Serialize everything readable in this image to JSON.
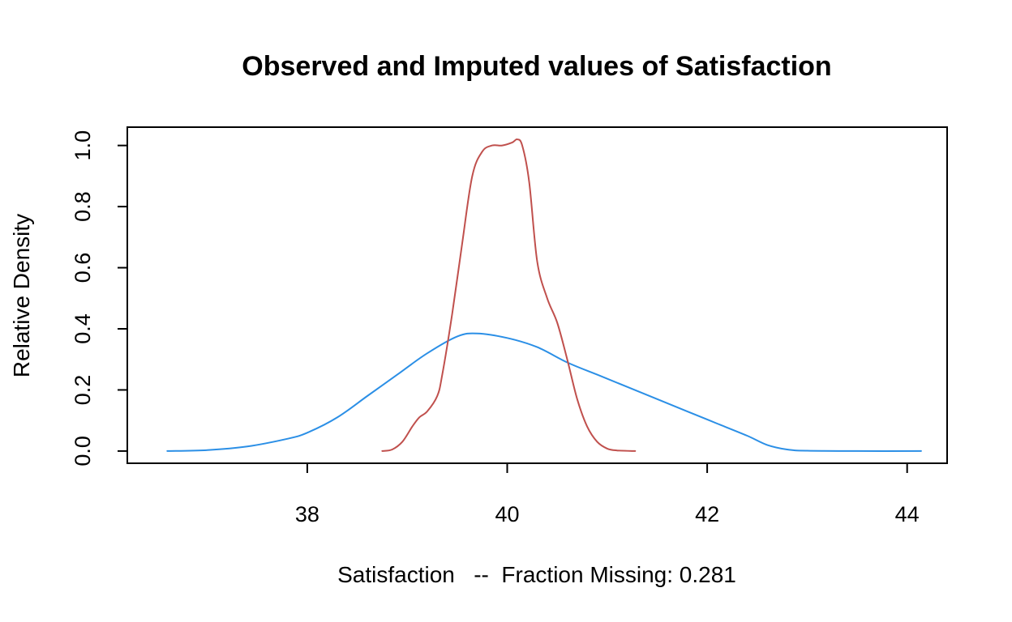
{
  "chart_data": {
    "type": "line",
    "title": "Observed and Imputed values of Satisfaction",
    "xlabel": "Satisfaction   --  Fraction Missing: 0.281",
    "ylabel": "Relative Density",
    "xlim": [
      36.2,
      44.4
    ],
    "ylim": [
      -0.04,
      1.06
    ],
    "x_ticks": [
      38,
      40,
      42,
      44
    ],
    "x_tick_labels": [
      "38",
      "40",
      "42",
      "44"
    ],
    "y_ticks": [
      0.0,
      0.2,
      0.4,
      0.6,
      0.8,
      1.0
    ],
    "y_tick_labels": [
      "0.0",
      "0.2",
      "0.4",
      "0.6",
      "0.8",
      "1.0"
    ],
    "grid": false,
    "series": [
      {
        "color": "#2b8fe6",
        "x": [
          36.6,
          37.0,
          37.4,
          37.8,
          38.0,
          38.3,
          38.6,
          38.9,
          39.2,
          39.5,
          39.7,
          40.0,
          40.3,
          40.6,
          40.9,
          41.2,
          41.5,
          41.8,
          42.1,
          42.4,
          42.6,
          42.8,
          43.0,
          43.5,
          44.14
        ],
        "y": [
          0.0,
          0.003,
          0.015,
          0.04,
          0.06,
          0.11,
          0.18,
          0.25,
          0.32,
          0.375,
          0.385,
          0.37,
          0.34,
          0.29,
          0.25,
          0.21,
          0.17,
          0.13,
          0.09,
          0.05,
          0.02,
          0.005,
          0.001,
          0.0,
          0.0
        ]
      },
      {
        "color": "#c0504d",
        "x": [
          38.75,
          38.85,
          38.95,
          39.05,
          39.12,
          39.2,
          39.3,
          39.35,
          39.45,
          39.55,
          39.65,
          39.75,
          39.85,
          39.95,
          40.05,
          40.1,
          40.15,
          40.22,
          40.3,
          40.4,
          40.5,
          40.6,
          40.7,
          40.8,
          40.9,
          41.0,
          41.1,
          41.28
        ],
        "y": [
          0.0,
          0.005,
          0.03,
          0.08,
          0.11,
          0.13,
          0.18,
          0.25,
          0.45,
          0.68,
          0.9,
          0.98,
          1.0,
          1.0,
          1.01,
          1.02,
          1.0,
          0.88,
          0.62,
          0.5,
          0.42,
          0.3,
          0.17,
          0.08,
          0.03,
          0.008,
          0.002,
          0.0
        ]
      }
    ]
  }
}
